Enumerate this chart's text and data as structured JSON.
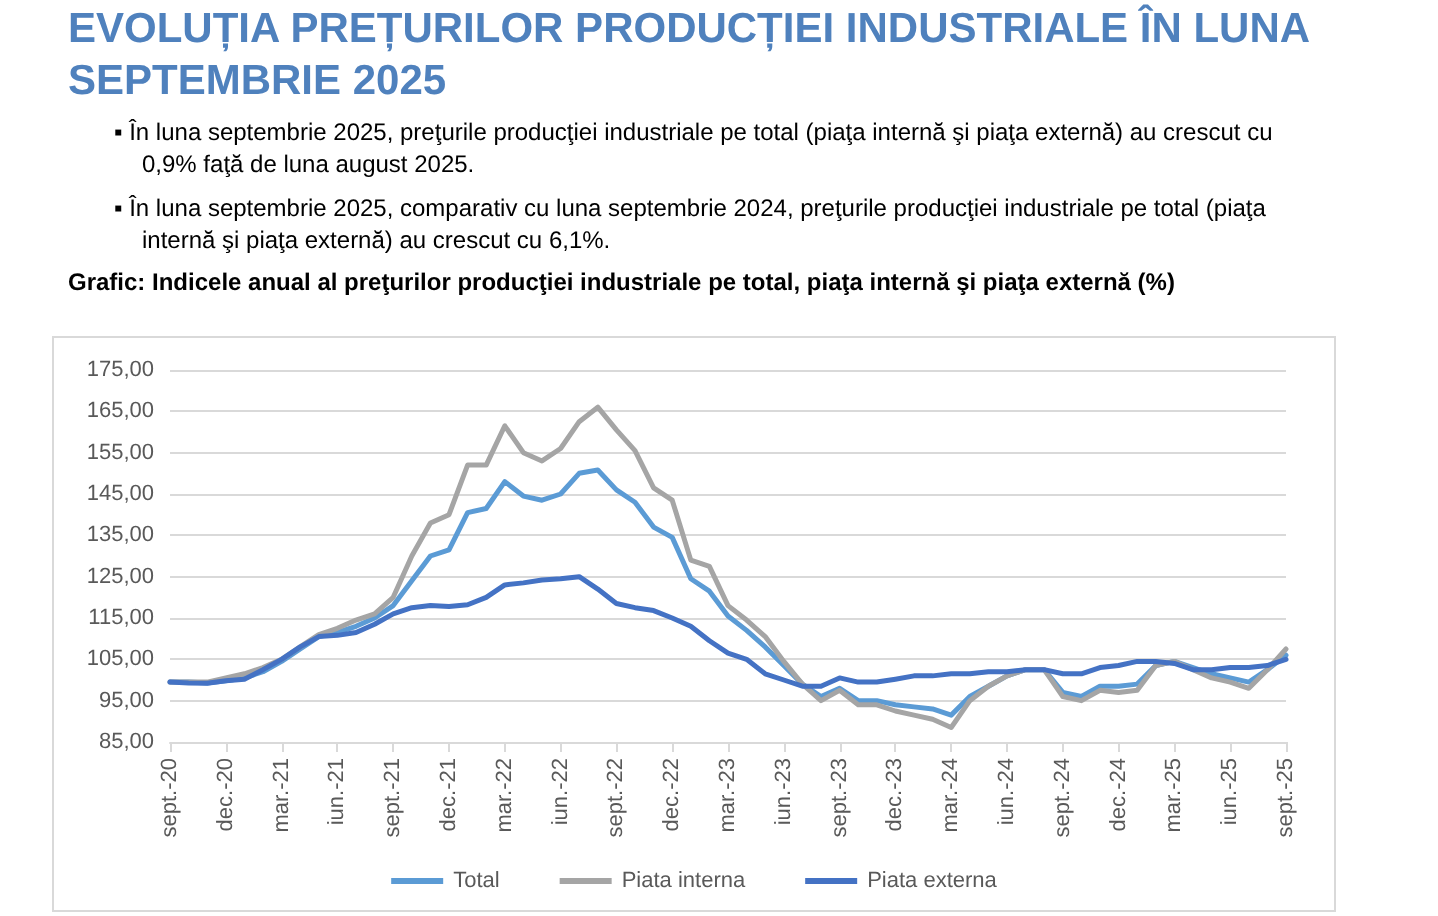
{
  "chart_data": {
    "type": "line",
    "title": "EVOLUȚIA PREȚURILOR PRODUCȚIEI INDUSTRIALE ÎN LUNA SEPTEMBRIE 2025",
    "annotations": [
      "▪ În luna septembrie 2025, preţurile producţiei industriale pe total (piaţa internă şi piaţa externă) au crescut cu 0,9% faţă de luna august 2025.",
      "▪ În luna septembrie 2025, comparativ cu luna septembrie 2024, preţurile producţiei industriale pe total (piaţa internă şi piaţa externă) au crescut cu 6,1%."
    ],
    "subtitle": "Grafic: Indicele anual al preţurilor producţiei industriale pe total, piaţa internă şi piaţa externă (%)",
    "categories": [
      "sept.-20",
      null,
      null,
      "dec.-20",
      null,
      null,
      "mar.-21",
      null,
      null,
      "iun.-21",
      null,
      null,
      "sept.-21",
      null,
      null,
      "dec.-21",
      null,
      null,
      "mar.-22",
      null,
      null,
      "iun.-22",
      null,
      null,
      "sept.-22",
      null,
      null,
      "dec.-22",
      null,
      null,
      "mar.-23",
      null,
      null,
      "iun.-23",
      null,
      null,
      "sept.-23",
      null,
      null,
      "dec.-23",
      null,
      null,
      "mar.-24",
      null,
      null,
      "iun.-24",
      null,
      null,
      "sept.-24",
      null,
      null,
      "dec.-24",
      null,
      null,
      "mar.-25",
      null,
      null,
      "iun.-25",
      null,
      null,
      "sept.-25"
    ],
    "series": [
      {
        "name": "Total",
        "color": "#5b9bd5",
        "values": [
          99.5,
          99.5,
          99.3,
          99.8,
          100.5,
          102,
          104.5,
          107.5,
          110.5,
          111.5,
          113,
          115,
          118,
          124,
          130,
          131.5,
          140.5,
          141.5,
          148,
          144.5,
          143.5,
          145,
          150,
          150.8,
          146,
          143,
          137,
          134.5,
          124.5,
          121.5,
          115.5,
          112,
          108,
          103.5,
          99,
          96,
          98,
          95,
          95,
          94,
          93.5,
          93,
          91.5,
          96,
          98.5,
          101,
          102.5,
          102.5,
          97,
          96,
          98.5,
          98.5,
          99,
          103.5,
          104.5,
          103,
          101.5,
          100.5,
          99.5,
          102.5,
          106
        ]
      },
      {
        "name": "Piata interna",
        "color": "#a5a5a5",
        "values": [
          99.5,
          99.5,
          99.5,
          100.5,
          101.5,
          103,
          105,
          108,
          111,
          112.5,
          114.5,
          116,
          120,
          130,
          138,
          140,
          152,
          152,
          161.5,
          155,
          153,
          156,
          162.5,
          166,
          160.5,
          155.5,
          146.5,
          143.5,
          129,
          127.5,
          118,
          114.5,
          110.5,
          104.5,
          99,
          95,
          97.5,
          94,
          94,
          92.5,
          91.5,
          90.5,
          88.5,
          95,
          98.5,
          101,
          102.5,
          102.5,
          96,
          95,
          97.5,
          97,
          97.5,
          103.5,
          104.5,
          102.5,
          100.5,
          99.5,
          98,
          102.5,
          107.5
        ]
      },
      {
        "name": "Piata externa",
        "color": "#4472c4",
        "values": [
          99.5,
          99.3,
          99.2,
          99.8,
          100.2,
          102.5,
          105,
          108,
          110.5,
          110.8,
          111.5,
          113.5,
          116,
          117.5,
          118,
          117.8,
          118.2,
          120,
          123,
          123.5,
          124.2,
          124.5,
          125,
          122,
          118.5,
          117.5,
          116.8,
          115,
          113,
          109.5,
          106.5,
          105,
          101.5,
          100,
          98.5,
          98.5,
          100.5,
          99.5,
          99.5,
          100.2,
          101,
          101,
          101.5,
          101.5,
          102,
          102,
          102.5,
          102.5,
          101.5,
          101.5,
          103,
          103.5,
          104.5,
          104.5,
          104,
          102.5,
          102.5,
          103,
          103,
          103.5,
          105
        ]
      }
    ],
    "ylim": [
      85,
      175
    ],
    "yticks": [
      {
        "value": 85,
        "label": "85,00"
      },
      {
        "value": 95,
        "label": "95,00"
      },
      {
        "value": 105,
        "label": "105,00"
      },
      {
        "value": 115,
        "label": "115,00"
      },
      {
        "value": 125,
        "label": "125,00"
      },
      {
        "value": 135,
        "label": "135,00"
      },
      {
        "value": 145,
        "label": "145,00"
      },
      {
        "value": 155,
        "label": "155,00"
      },
      {
        "value": 165,
        "label": "165,00"
      },
      {
        "value": 175,
        "label": "175,00"
      }
    ],
    "grid": "y",
    "legend": "bottom",
    "marker": "none",
    "line_style": "solid"
  }
}
